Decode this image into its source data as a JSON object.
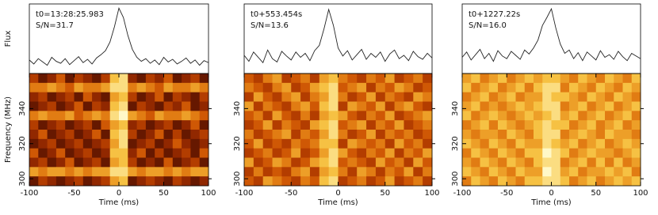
{
  "chart_data": [
    {
      "type": "pulse",
      "annotations": [
        "t0=13:28:25.983",
        "S/N=31.7"
      ],
      "flux_label": "Flux",
      "xlabel": "Time (ms)",
      "ylabel": "Frequency (MHz)",
      "x": [
        -100,
        -95,
        -90,
        -85,
        -80,
        -75,
        -70,
        -65,
        -60,
        -55,
        -50,
        -45,
        -40,
        -35,
        -30,
        -25,
        -20,
        -15,
        -10,
        -5,
        0,
        5,
        10,
        15,
        20,
        25,
        30,
        35,
        40,
        45,
        50,
        55,
        60,
        65,
        70,
        75,
        80,
        85,
        90,
        95,
        100
      ],
      "flux": [
        1.8,
        1.2,
        2.0,
        1.5,
        1.0,
        2.2,
        1.6,
        1.3,
        2.0,
        1.1,
        1.7,
        2.3,
        1.4,
        1.9,
        1.2,
        2.1,
        2.6,
        3.2,
        4.5,
        6.8,
        9.6,
        8.2,
        5.5,
        3.4,
        2.2,
        1.6,
        2.0,
        1.3,
        1.8,
        1.1,
        2.2,
        1.5,
        1.9,
        1.2,
        1.6,
        2.1,
        1.3,
        1.8,
        1.0,
        1.7,
        1.4
      ],
      "flux_lim": [
        0,
        10
      ],
      "xlim": [
        -100,
        100
      ],
      "xticks": [
        -100,
        -50,
        0,
        50,
        100
      ],
      "ylim": [
        296,
        360
      ],
      "yticks": [
        300,
        320,
        340
      ],
      "zlim": [
        0,
        9
      ],
      "colormap": [
        "#3a0800",
        "#8a2400",
        "#c84a00",
        "#e88a18",
        "#f8c848",
        "#fff8c8"
      ],
      "z": [
        [
          3,
          1,
          2,
          4,
          1,
          3,
          2,
          1,
          3,
          7,
          8,
          2,
          1,
          3,
          2,
          4,
          1,
          2,
          3,
          1
        ],
        [
          5,
          5,
          6,
          5,
          4,
          6,
          5,
          5,
          6,
          8,
          8,
          5,
          6,
          5,
          4,
          6,
          5,
          5,
          6,
          5
        ],
        [
          2,
          3,
          1,
          2,
          3,
          1,
          4,
          2,
          1,
          6,
          7,
          3,
          1,
          2,
          4,
          1,
          3,
          2,
          1,
          3
        ],
        [
          1,
          2,
          3,
          1,
          2,
          4,
          1,
          3,
          2,
          7,
          8,
          1,
          3,
          2,
          1,
          3,
          2,
          4,
          1,
          2
        ],
        [
          5,
          6,
          5,
          5,
          6,
          4,
          5,
          6,
          5,
          8,
          9,
          6,
          5,
          4,
          6,
          5,
          5,
          6,
          5,
          4
        ],
        [
          3,
          1,
          2,
          3,
          1,
          2,
          3,
          1,
          4,
          6,
          7,
          2,
          3,
          1,
          2,
          3,
          1,
          2,
          4,
          1
        ],
        [
          2,
          4,
          1,
          2,
          3,
          1,
          2,
          4,
          1,
          7,
          8,
          3,
          1,
          2,
          4,
          1,
          3,
          1,
          2,
          3
        ],
        [
          1,
          2,
          3,
          1,
          2,
          3,
          1,
          2,
          3,
          6,
          8,
          1,
          2,
          3,
          1,
          2,
          4,
          2,
          1,
          2
        ],
        [
          4,
          1,
          2,
          4,
          1,
          2,
          3,
          1,
          2,
          7,
          7,
          2,
          4,
          1,
          3,
          1,
          2,
          3,
          1,
          4
        ],
        [
          2,
          3,
          1,
          2,
          4,
          1,
          2,
          3,
          1,
          6,
          7,
          3,
          1,
          2,
          1,
          4,
          1,
          2,
          3,
          1
        ],
        [
          6,
          5,
          6,
          6,
          5,
          6,
          5,
          6,
          6,
          8,
          8,
          6,
          5,
          6,
          6,
          5,
          6,
          5,
          6,
          6
        ],
        [
          1,
          3,
          2,
          1,
          2,
          3,
          1,
          2,
          3,
          6,
          7,
          1,
          2,
          3,
          2,
          1,
          3,
          2,
          1,
          2
        ]
      ]
    },
    {
      "type": "pulse",
      "annotations": [
        "t0+553.454s",
        "S/N=13.6"
      ],
      "xlabel": "Time (ms)",
      "x": [
        -100,
        -95,
        -90,
        -85,
        -80,
        -75,
        -70,
        -65,
        -60,
        -55,
        -50,
        -45,
        -40,
        -35,
        -30,
        -25,
        -20,
        -15,
        -10,
        -5,
        0,
        5,
        10,
        15,
        20,
        25,
        30,
        35,
        40,
        45,
        50,
        55,
        60,
        65,
        70,
        75,
        80,
        85,
        90,
        95,
        100
      ],
      "flux": [
        2.5,
        1.6,
        3.0,
        2.2,
        1.4,
        3.3,
        2.0,
        1.5,
        3.1,
        2.4,
        1.8,
        3.0,
        2.2,
        2.8,
        1.7,
        3.2,
        4.0,
        6.5,
        9.4,
        7.0,
        3.6,
        2.4,
        3.2,
        1.8,
        2.6,
        3.4,
        1.9,
        2.8,
        2.2,
        3.0,
        1.6,
        2.7,
        3.3,
        2.0,
        2.5,
        1.7,
        3.1,
        2.3,
        1.9,
        2.8,
        2.1
      ],
      "flux_lim": [
        0,
        10
      ],
      "xlim": [
        -100,
        100
      ],
      "xticks": [
        -100,
        -50,
        0,
        50,
        100
      ],
      "ylim": [
        296,
        360
      ],
      "yticks": [
        300,
        320,
        340
      ],
      "zlim": [
        0,
        9
      ],
      "colormap": [
        "#3a0800",
        "#8a2400",
        "#c84a00",
        "#e88a18",
        "#f8c848",
        "#fff8c8"
      ],
      "z": [
        [
          4,
          3,
          5,
          6,
          3,
          4,
          5,
          3,
          6,
          7,
          5,
          4,
          3,
          5,
          4,
          6,
          3,
          4,
          5,
          3
        ],
        [
          5,
          4,
          3,
          5,
          6,
          3,
          4,
          6,
          7,
          8,
          4,
          5,
          6,
          3,
          5,
          4,
          6,
          5,
          3,
          4
        ],
        [
          3,
          6,
          4,
          3,
          5,
          6,
          3,
          5,
          6,
          8,
          5,
          3,
          4,
          6,
          3,
          5,
          4,
          3,
          6,
          5
        ],
        [
          6,
          3,
          5,
          4,
          3,
          5,
          6,
          4,
          7,
          8,
          3,
          6,
          5,
          4,
          6,
          3,
          5,
          6,
          4,
          3
        ],
        [
          4,
          5,
          3,
          6,
          4,
          3,
          5,
          3,
          6,
          7,
          6,
          4,
          3,
          5,
          4,
          6,
          3,
          4,
          5,
          6
        ],
        [
          3,
          4,
          6,
          3,
          5,
          4,
          3,
          6,
          7,
          8,
          4,
          5,
          6,
          3,
          5,
          4,
          6,
          3,
          4,
          5
        ],
        [
          5,
          3,
          4,
          5,
          6,
          3,
          5,
          4,
          6,
          8,
          5,
          3,
          4,
          6,
          3,
          5,
          4,
          5,
          3,
          4
        ],
        [
          4,
          6,
          3,
          4,
          3,
          5,
          4,
          5,
          7,
          7,
          3,
          6,
          5,
          4,
          5,
          3,
          6,
          4,
          5,
          3
        ],
        [
          3,
          4,
          5,
          3,
          4,
          6,
          3,
          4,
          6,
          8,
          6,
          4,
          3,
          5,
          4,
          6,
          3,
          5,
          4,
          6
        ],
        [
          6,
          3,
          4,
          6,
          5,
          3,
          4,
          6,
          7,
          8,
          4,
          5,
          4,
          3,
          6,
          4,
          5,
          3,
          6,
          4
        ],
        [
          3,
          5,
          3,
          4,
          3,
          5,
          6,
          3,
          6,
          7,
          5,
          3,
          6,
          5,
          3,
          5,
          4,
          6,
          3,
          5
        ],
        [
          4,
          3,
          6,
          5,
          4,
          3,
          5,
          4,
          7,
          8,
          3,
          4,
          5,
          3,
          4,
          6,
          3,
          4,
          5,
          3
        ]
      ]
    },
    {
      "type": "pulse",
      "annotations": [
        "t0+1227.22s",
        "S/N=16.0"
      ],
      "xlabel": "Time (ms)",
      "x": [
        -100,
        -95,
        -90,
        -85,
        -80,
        -75,
        -70,
        -65,
        -60,
        -55,
        -50,
        -45,
        -40,
        -35,
        -30,
        -25,
        -20,
        -15,
        -10,
        -5,
        0,
        5,
        10,
        15,
        20,
        25,
        30,
        35,
        40,
        45,
        50,
        55,
        60,
        65,
        70,
        75,
        80,
        85,
        90,
        95,
        100
      ],
      "flux": [
        2.2,
        3.0,
        1.8,
        2.6,
        3.4,
        2.0,
        2.8,
        1.6,
        3.2,
        2.4,
        2.0,
        3.1,
        2.5,
        1.9,
        3.3,
        2.7,
        3.6,
        4.8,
        7.0,
        8.2,
        9.5,
        6.6,
        4.2,
        2.8,
        3.3,
        2.0,
        2.9,
        1.7,
        3.0,
        2.4,
        1.8,
        3.2,
        2.2,
        2.6,
        1.9,
        3.1,
        2.3,
        1.7,
        2.8,
        2.4,
        2.0
      ],
      "flux_lim": [
        0,
        10
      ],
      "xlim": [
        -100,
        100
      ],
      "xticks": [
        -100,
        -50,
        0,
        50,
        100
      ],
      "ylim": [
        296,
        360
      ],
      "yticks": [
        300,
        320,
        340
      ],
      "zlim": [
        0,
        9
      ],
      "colormap": [
        "#3a0800",
        "#8a2400",
        "#c84a00",
        "#e88a18",
        "#f8c848",
        "#fff8c8"
      ],
      "z": [
        [
          6,
          7,
          5,
          6,
          7,
          5,
          6,
          7,
          6,
          7,
          7,
          6,
          5,
          7,
          6,
          5,
          7,
          6,
          5,
          7
        ],
        [
          7,
          5,
          6,
          7,
          5,
          6,
          7,
          5,
          7,
          8,
          8,
          5,
          7,
          6,
          5,
          7,
          6,
          5,
          7,
          6
        ],
        [
          5,
          6,
          7,
          5,
          6,
          7,
          5,
          6,
          6,
          8,
          7,
          7,
          6,
          5,
          7,
          6,
          5,
          7,
          6,
          5
        ],
        [
          6,
          7,
          5,
          6,
          5,
          6,
          7,
          6,
          7,
          8,
          8,
          5,
          6,
          7,
          5,
          6,
          7,
          5,
          6,
          7
        ],
        [
          7,
          5,
          6,
          7,
          6,
          5,
          6,
          7,
          6,
          7,
          8,
          6,
          7,
          5,
          6,
          7,
          5,
          6,
          7,
          5
        ],
        [
          5,
          6,
          7,
          5,
          7,
          6,
          5,
          6,
          7,
          8,
          7,
          7,
          5,
          6,
          7,
          5,
          6,
          7,
          5,
          6
        ],
        [
          6,
          5,
          6,
          6,
          5,
          7,
          6,
          5,
          7,
          8,
          8,
          5,
          6,
          7,
          6,
          5,
          7,
          6,
          6,
          5
        ],
        [
          7,
          6,
          5,
          7,
          6,
          5,
          7,
          6,
          6,
          8,
          7,
          6,
          7,
          5,
          6,
          7,
          5,
          6,
          7,
          6
        ],
        [
          5,
          7,
          6,
          5,
          7,
          6,
          5,
          7,
          7,
          9,
          8,
          7,
          5,
          6,
          7,
          6,
          6,
          5,
          6,
          7
        ],
        [
          6,
          5,
          7,
          6,
          5,
          7,
          6,
          5,
          7,
          8,
          8,
          5,
          6,
          7,
          5,
          7,
          5,
          7,
          5,
          6
        ],
        [
          7,
          6,
          5,
          7,
          6,
          5,
          7,
          6,
          6,
          9,
          8,
          6,
          7,
          5,
          6,
          6,
          7,
          6,
          7,
          5
        ],
        [
          5,
          7,
          6,
          5,
          7,
          6,
          5,
          7,
          7,
          8,
          8,
          7,
          5,
          6,
          7,
          5,
          6,
          7,
          6,
          7
        ]
      ]
    }
  ]
}
